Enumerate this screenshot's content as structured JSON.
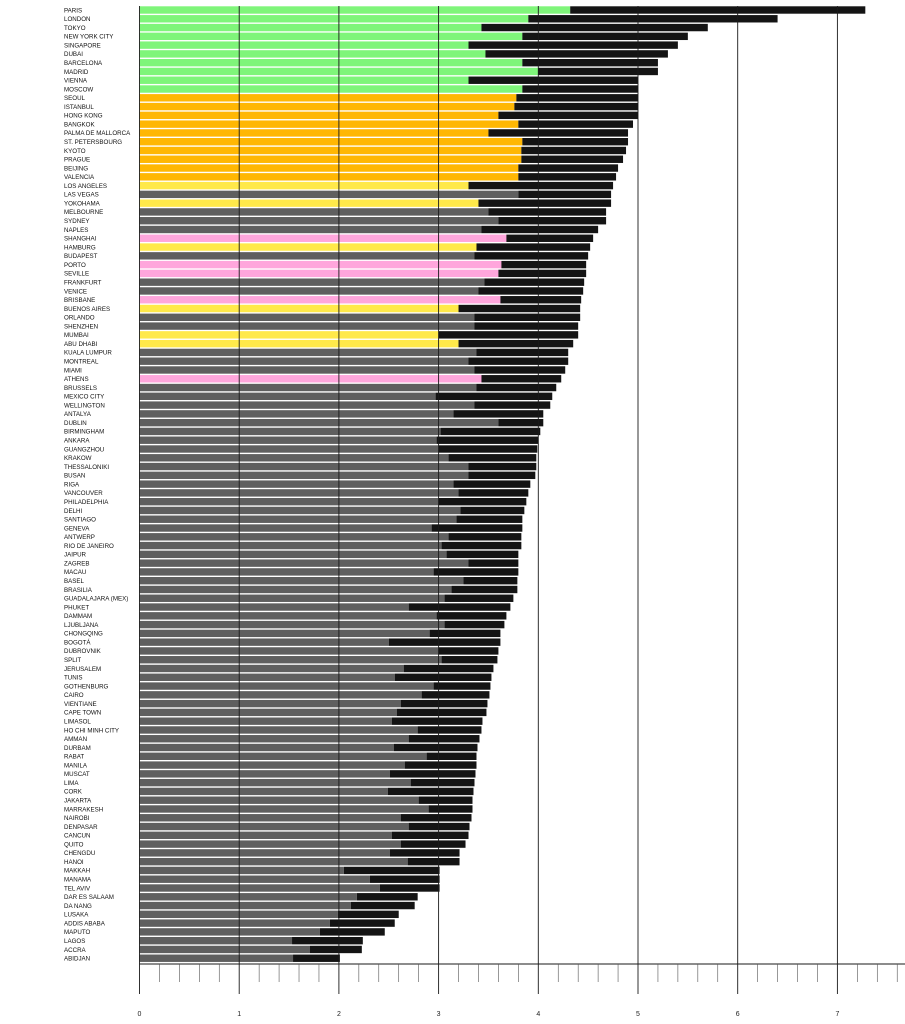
{
  "chart_data": {
    "type": "bar",
    "orientation": "horizontal",
    "stacked": true,
    "xlim": [
      0,
      7.7
    ],
    "xticks": [
      0,
      1,
      2,
      3,
      4,
      5,
      6,
      7
    ],
    "grid": true,
    "legend": "none",
    "colors": {
      "green": "#7ff57a",
      "orange": "#ffb703",
      "yellow": "#ffe94a",
      "pink": "#ffa6dc",
      "gray": "#5f5f5f",
      "black": "#141414"
    },
    "rows": [
      {
        "city": "PARIS",
        "base": 4.32,
        "total": 7.28,
        "color": "green"
      },
      {
        "city": "LONDON",
        "base": 3.9,
        "total": 6.4,
        "color": "green"
      },
      {
        "city": "TOKYO",
        "base": 3.43,
        "total": 5.7,
        "color": "green"
      },
      {
        "city": "NEW YORK CITY",
        "base": 3.84,
        "total": 5.5,
        "color": "green"
      },
      {
        "city": "SINGAPORE",
        "base": 3.3,
        "total": 5.4,
        "color": "green"
      },
      {
        "city": "DUBAI",
        "base": 3.47,
        "total": 5.3,
        "color": "green"
      },
      {
        "city": "BARCELONA",
        "base": 3.84,
        "total": 5.2,
        "color": "green"
      },
      {
        "city": "MADRID",
        "base": 4.0,
        "total": 5.2,
        "color": "green"
      },
      {
        "city": "VIENNA",
        "base": 3.3,
        "total": 5.0,
        "color": "green"
      },
      {
        "city": "MOSCOW",
        "base": 3.84,
        "total": 5.0,
        "color": "green"
      },
      {
        "city": "SEOUL",
        "base": 3.78,
        "total": 5.0,
        "color": "orange"
      },
      {
        "city": "ISTANBUL",
        "base": 3.76,
        "total": 5.0,
        "color": "orange"
      },
      {
        "city": "HONG KONG",
        "base": 3.6,
        "total": 5.0,
        "color": "orange"
      },
      {
        "city": "BANGKOK",
        "base": 3.8,
        "total": 4.95,
        "color": "orange"
      },
      {
        "city": "PALMA DE MALLORCA",
        "base": 3.5,
        "total": 4.9,
        "color": "orange"
      },
      {
        "city": "ST. PETERSBOURG",
        "base": 3.84,
        "total": 4.9,
        "color": "orange"
      },
      {
        "city": "KYOTO",
        "base": 3.83,
        "total": 4.88,
        "color": "orange"
      },
      {
        "city": "PRAGUE",
        "base": 3.83,
        "total": 4.85,
        "color": "orange"
      },
      {
        "city": "BEIJING",
        "base": 3.8,
        "total": 4.8,
        "color": "orange"
      },
      {
        "city": "VALENCIA",
        "base": 3.8,
        "total": 4.78,
        "color": "orange"
      },
      {
        "city": "LOS ANGELES",
        "base": 3.3,
        "total": 4.75,
        "color": "yellow"
      },
      {
        "city": "LAS VEGAS",
        "base": 3.8,
        "total": 4.73,
        "color": "gray"
      },
      {
        "city": "YOKOHAMA",
        "base": 3.4,
        "total": 4.73,
        "color": "yellow"
      },
      {
        "city": "MELBOURNE",
        "base": 3.5,
        "total": 4.68,
        "color": "gray"
      },
      {
        "city": "SYDNEY",
        "base": 3.6,
        "total": 4.68,
        "color": "gray"
      },
      {
        "city": "NAPLES",
        "base": 3.43,
        "total": 4.6,
        "color": "gray"
      },
      {
        "city": "SHANGHAI",
        "base": 3.68,
        "total": 4.55,
        "color": "pink"
      },
      {
        "city": "HAMBURG",
        "base": 3.38,
        "total": 4.52,
        "color": "yellow"
      },
      {
        "city": "BUDAPEST",
        "base": 3.36,
        "total": 4.5,
        "color": "gray"
      },
      {
        "city": "PORTO",
        "base": 3.63,
        "total": 4.48,
        "color": "pink"
      },
      {
        "city": "SEVILLE",
        "base": 3.6,
        "total": 4.48,
        "color": "pink"
      },
      {
        "city": "FRANKFURT",
        "base": 3.46,
        "total": 4.46,
        "color": "gray"
      },
      {
        "city": "VENICE",
        "base": 3.4,
        "total": 4.45,
        "color": "gray"
      },
      {
        "city": "BRISBANE",
        "base": 3.62,
        "total": 4.43,
        "color": "pink"
      },
      {
        "city": "BUENOS AIRES",
        "base": 3.2,
        "total": 4.42,
        "color": "yellow"
      },
      {
        "city": "ORLANDO",
        "base": 3.36,
        "total": 4.42,
        "color": "gray"
      },
      {
        "city": "SHENZHEN",
        "base": 3.36,
        "total": 4.4,
        "color": "gray"
      },
      {
        "city": "MUMBAI",
        "base": 3.0,
        "total": 4.4,
        "color": "yellow"
      },
      {
        "city": "ABU DHABI",
        "base": 3.2,
        "total": 4.35,
        "color": "yellow"
      },
      {
        "city": "KUALA LUMPUR",
        "base": 3.38,
        "total": 4.3,
        "color": "gray"
      },
      {
        "city": "MONTREAL",
        "base": 3.3,
        "total": 4.3,
        "color": "gray"
      },
      {
        "city": "MIAMI",
        "base": 3.36,
        "total": 4.27,
        "color": "gray"
      },
      {
        "city": "ATHENS",
        "base": 3.43,
        "total": 4.23,
        "color": "pink"
      },
      {
        "city": "BRUSSELS",
        "base": 3.38,
        "total": 4.18,
        "color": "gray"
      },
      {
        "city": "MEXICO CITY",
        "base": 2.97,
        "total": 4.14,
        "color": "gray"
      },
      {
        "city": "WELLINGTON",
        "base": 3.36,
        "total": 4.12,
        "color": "gray"
      },
      {
        "city": "ANTALYA",
        "base": 3.15,
        "total": 4.05,
        "color": "gray"
      },
      {
        "city": "DUBLIN",
        "base": 3.6,
        "total": 4.05,
        "color": "gray"
      },
      {
        "city": "BIRMINGHAM",
        "base": 3.02,
        "total": 4.02,
        "color": "gray"
      },
      {
        "city": "ANKARA",
        "base": 2.98,
        "total": 4.0,
        "color": "gray"
      },
      {
        "city": "GUANGZHOU",
        "base": 3.0,
        "total": 3.99,
        "color": "gray"
      },
      {
        "city": "KRAKOW",
        "base": 3.1,
        "total": 3.98,
        "color": "gray"
      },
      {
        "city": "THESSALONIKI",
        "base": 3.3,
        "total": 3.98,
        "color": "gray"
      },
      {
        "city": "BUSAN",
        "base": 3.3,
        "total": 3.97,
        "color": "gray"
      },
      {
        "city": "RIGA",
        "base": 3.15,
        "total": 3.92,
        "color": "gray"
      },
      {
        "city": "VANCOUVER",
        "base": 3.2,
        "total": 3.9,
        "color": "gray"
      },
      {
        "city": "PHILADELPHIA",
        "base": 3.0,
        "total": 3.88,
        "color": "gray"
      },
      {
        "city": "DELHI",
        "base": 3.22,
        "total": 3.86,
        "color": "gray"
      },
      {
        "city": "SANTIAGO",
        "base": 3.18,
        "total": 3.84,
        "color": "gray"
      },
      {
        "city": "GENEVA",
        "base": 2.93,
        "total": 3.84,
        "color": "gray"
      },
      {
        "city": "ANTWERP",
        "base": 3.1,
        "total": 3.83,
        "color": "gray"
      },
      {
        "city": "RIO DE JANEIRO",
        "base": 3.03,
        "total": 3.83,
        "color": "gray"
      },
      {
        "city": "JAIPUR",
        "base": 3.08,
        "total": 3.8,
        "color": "gray"
      },
      {
        "city": "ZAGREB",
        "base": 3.3,
        "total": 3.8,
        "color": "gray"
      },
      {
        "city": "MACAU",
        "base": 2.95,
        "total": 3.8,
        "color": "gray"
      },
      {
        "city": "BASEL",
        "base": 3.25,
        "total": 3.79,
        "color": "gray"
      },
      {
        "city": "BRASILIA",
        "base": 3.13,
        "total": 3.79,
        "color": "gray"
      },
      {
        "city": "GUADALAJARA (MEX)",
        "base": 3.06,
        "total": 3.75,
        "color": "gray"
      },
      {
        "city": "PHUKET",
        "base": 2.7,
        "total": 3.72,
        "color": "gray"
      },
      {
        "city": "DAMMAM",
        "base": 2.98,
        "total": 3.68,
        "color": "gray"
      },
      {
        "city": "LJUBLJANA",
        "base": 3.06,
        "total": 3.66,
        "color": "gray"
      },
      {
        "city": "CHONGQING",
        "base": 2.91,
        "total": 3.62,
        "color": "gray"
      },
      {
        "city": "BOGOTÁ",
        "base": 2.5,
        "total": 3.62,
        "color": "gray"
      },
      {
        "city": "DUBROVNIK",
        "base": 3.0,
        "total": 3.6,
        "color": "gray"
      },
      {
        "city": "SPLIT",
        "base": 3.03,
        "total": 3.59,
        "color": "gray"
      },
      {
        "city": "JERUSALEM",
        "base": 2.65,
        "total": 3.55,
        "color": "gray"
      },
      {
        "city": "TUNIS",
        "base": 2.56,
        "total": 3.53,
        "color": "gray"
      },
      {
        "city": "GOTHENBURG",
        "base": 2.95,
        "total": 3.52,
        "color": "gray"
      },
      {
        "city": "CAIRO",
        "base": 2.83,
        "total": 3.51,
        "color": "gray"
      },
      {
        "city": "VIENTIANE",
        "base": 2.62,
        "total": 3.49,
        "color": "gray"
      },
      {
        "city": "CAPE TOWN",
        "base": 2.58,
        "total": 3.48,
        "color": "gray"
      },
      {
        "city": "LIMASOL",
        "base": 2.53,
        "total": 3.44,
        "color": "gray"
      },
      {
        "city": "HO CHI MINH CITY",
        "base": 2.79,
        "total": 3.43,
        "color": "gray"
      },
      {
        "city": "AMMAN",
        "base": 2.7,
        "total": 3.41,
        "color": "gray"
      },
      {
        "city": "DURBAM",
        "base": 2.55,
        "total": 3.39,
        "color": "gray"
      },
      {
        "city": "RABAT",
        "base": 2.88,
        "total": 3.38,
        "color": "gray"
      },
      {
        "city": "MANILA",
        "base": 2.66,
        "total": 3.38,
        "color": "gray"
      },
      {
        "city": "MUSCAT",
        "base": 2.51,
        "total": 3.37,
        "color": "gray"
      },
      {
        "city": "LIMA",
        "base": 2.72,
        "total": 3.36,
        "color": "gray"
      },
      {
        "city": "CORK",
        "base": 2.49,
        "total": 3.35,
        "color": "gray"
      },
      {
        "city": "JAKARTA",
        "base": 2.8,
        "total": 3.34,
        "color": "gray"
      },
      {
        "city": "MARRAKESH",
        "base": 2.9,
        "total": 3.34,
        "color": "gray"
      },
      {
        "city": "NAIROBI",
        "base": 2.62,
        "total": 3.33,
        "color": "gray"
      },
      {
        "city": "DENPASAR",
        "base": 2.7,
        "total": 3.31,
        "color": "gray"
      },
      {
        "city": "CANCUN",
        "base": 2.53,
        "total": 3.3,
        "color": "gray"
      },
      {
        "city": "QUITO",
        "base": 2.62,
        "total": 3.27,
        "color": "gray"
      },
      {
        "city": "CHENGDU",
        "base": 2.51,
        "total": 3.21,
        "color": "gray"
      },
      {
        "city": "HANOI",
        "base": 2.69,
        "total": 3.21,
        "color": "gray"
      },
      {
        "city": "MAKKAH",
        "base": 2.05,
        "total": 3.01,
        "color": "gray"
      },
      {
        "city": "MANAMA",
        "base": 2.31,
        "total": 3.01,
        "color": "gray"
      },
      {
        "city": "TEL AVIV",
        "base": 2.41,
        "total": 3.01,
        "color": "gray"
      },
      {
        "city": "DAR ES SALAAM",
        "base": 2.18,
        "total": 2.79,
        "color": "gray"
      },
      {
        "city": "DA NANG",
        "base": 2.12,
        "total": 2.76,
        "color": "gray"
      },
      {
        "city": "LUSAKA",
        "base": 1.99,
        "total": 2.6,
        "color": "gray"
      },
      {
        "city": "ADDIS ABABA",
        "base": 1.91,
        "total": 2.56,
        "color": "gray"
      },
      {
        "city": "MAPUTO",
        "base": 1.81,
        "total": 2.46,
        "color": "gray"
      },
      {
        "city": "LAGOS",
        "base": 1.53,
        "total": 2.24,
        "color": "gray"
      },
      {
        "city": "ACCRA",
        "base": 1.71,
        "total": 2.23,
        "color": "gray"
      },
      {
        "city": "ABIDJAN",
        "base": 1.54,
        "total": 2.01,
        "color": "gray"
      }
    ]
  }
}
